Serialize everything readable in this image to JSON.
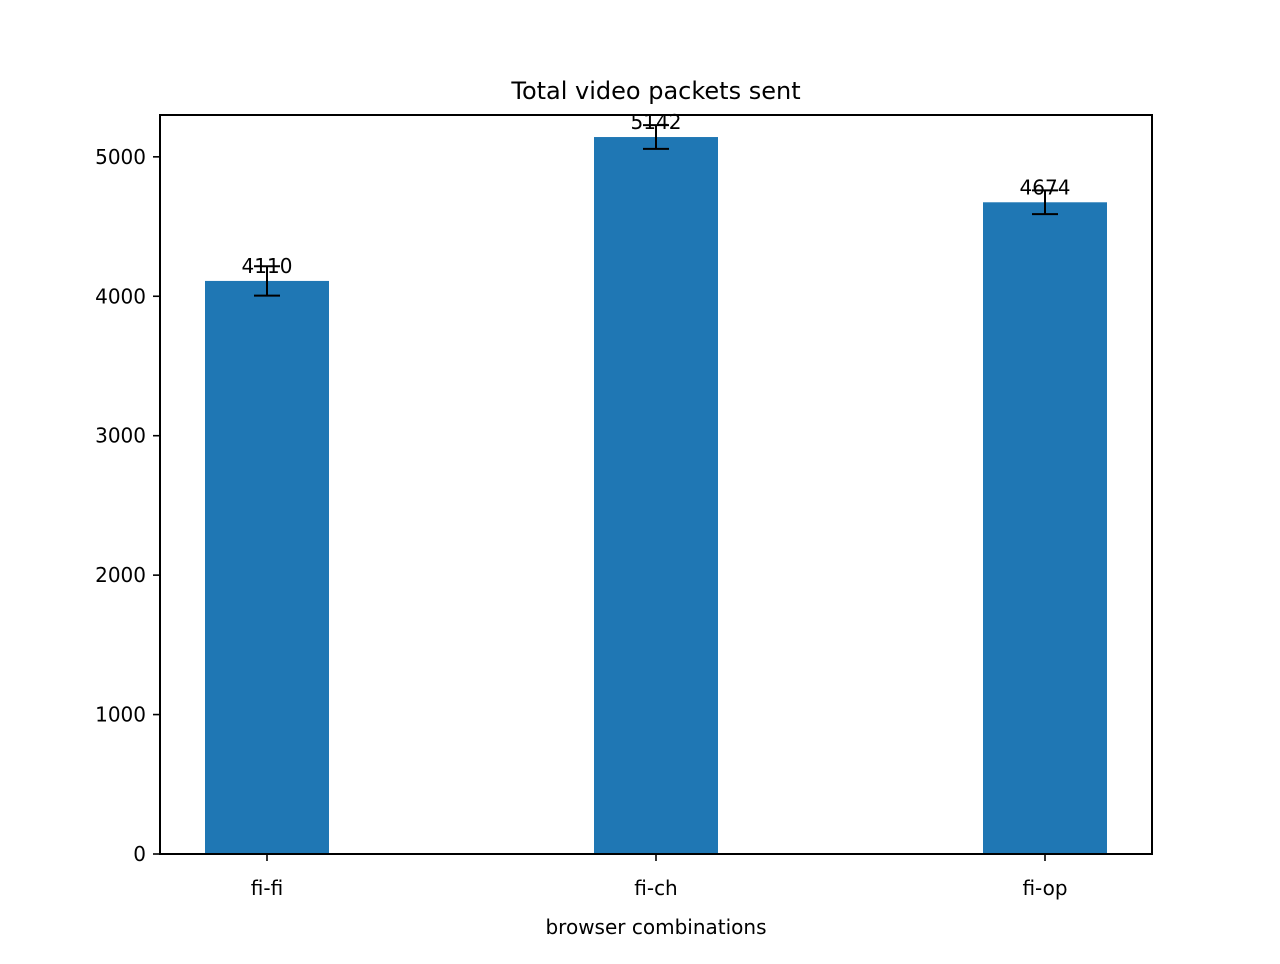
{
  "chart_data": {
    "type": "bar",
    "title": "Total video packets sent",
    "xlabel": "browser combinations",
    "ylabel": "",
    "categories": [
      "fi-fi",
      "fi-ch",
      "fi-op"
    ],
    "values": [
      4110,
      5142,
      4674
    ],
    "errors": [
      105,
      85,
      85
    ],
    "value_labels": [
      "4110",
      "5142",
      "4674"
    ],
    "ylim": [
      0,
      5300
    ],
    "yticks": [
      0,
      1000,
      2000,
      3000,
      4000,
      5000
    ],
    "ytick_labels": [
      "0",
      "1000",
      "2000",
      "3000",
      "4000",
      "5000"
    ],
    "grid": false,
    "legend": "none",
    "bar_color": "#1f77b4",
    "error_color": "#000000"
  }
}
